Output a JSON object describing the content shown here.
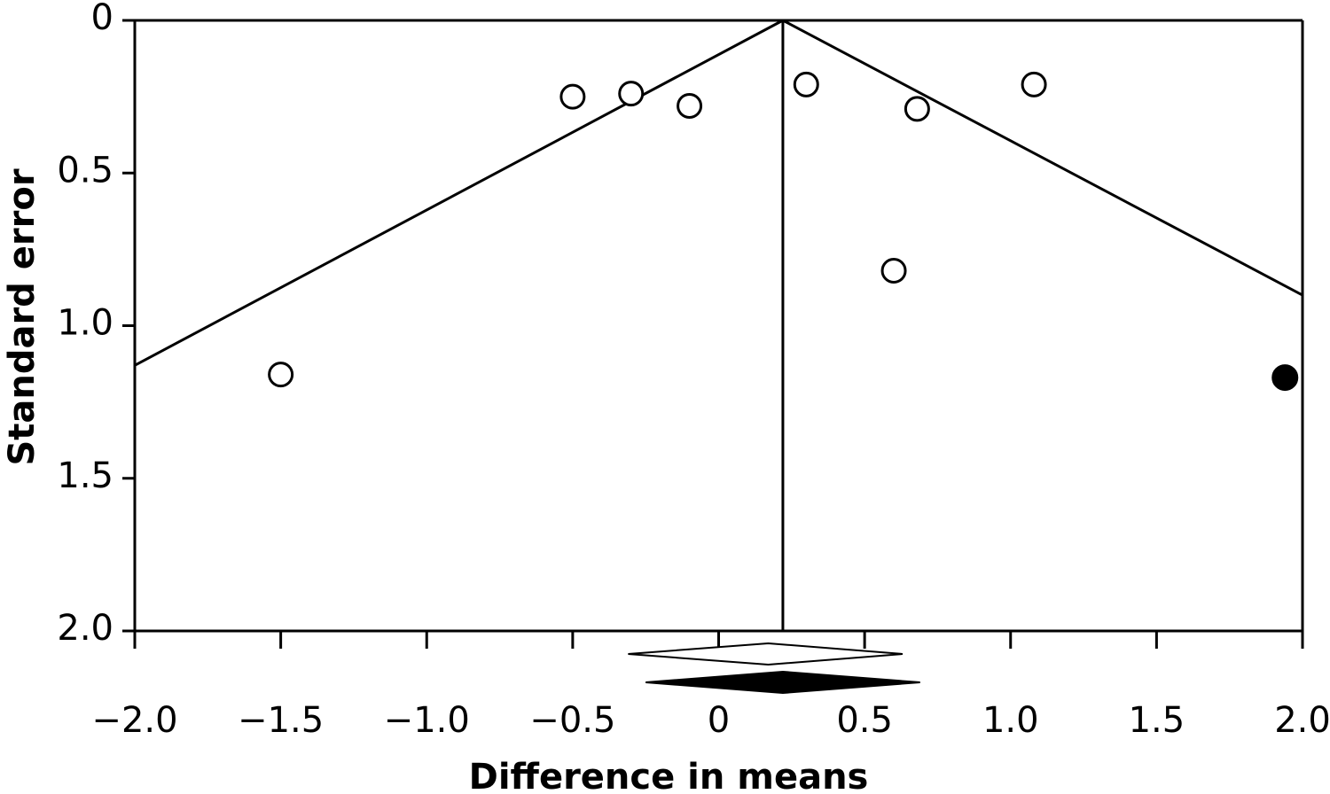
{
  "chart_data": {
    "type": "scatter",
    "title": "",
    "xlabel": "Difference in means",
    "ylabel": "Standard error",
    "xlim": [
      -2.0,
      2.0
    ],
    "ylim": [
      0,
      2.0
    ],
    "y_inverted": true,
    "x_ticks": [
      "−2.0",
      "−1.5",
      "−1.0",
      "−0.5",
      "0",
      "0.5",
      "1.0",
      "1.5",
      "2.0"
    ],
    "x_tick_values": [
      -2.0,
      -1.5,
      -1.0,
      -0.5,
      0,
      0.5,
      1.0,
      1.5,
      2.0
    ],
    "y_ticks": [
      "0",
      "0.5",
      "1.0",
      "1.5",
      "2.0"
    ],
    "y_tick_values": [
      0,
      0.5,
      1.0,
      1.5,
      2.0
    ],
    "observed_studies": [
      {
        "x": -0.5,
        "y": 0.25
      },
      {
        "x": -0.3,
        "y": 0.24
      },
      {
        "x": -0.1,
        "y": 0.28
      },
      {
        "x": 0.3,
        "y": 0.21
      },
      {
        "x": 0.68,
        "y": 0.29
      },
      {
        "x": 1.08,
        "y": 0.21
      },
      {
        "x": 0.6,
        "y": 0.82
      },
      {
        "x": -1.5,
        "y": 1.16
      }
    ],
    "imputed_studies": [
      {
        "x": 1.94,
        "y": 1.17
      }
    ],
    "funnel_apex": {
      "x": 0.22,
      "y": 0
    },
    "funnel_left_end": {
      "x": -2.0,
      "y": 1.13
    },
    "funnel_right_end": {
      "x": 2.0,
      "y": 0.9
    },
    "observed_pooled_effect": {
      "estimate": 0.17,
      "ci_low": -0.31,
      "ci_high": 0.63
    },
    "adjusted_pooled_effect": {
      "estimate": 0.22,
      "ci_low": -0.25,
      "ci_high": 0.69
    },
    "grid": false,
    "legend": "none"
  }
}
